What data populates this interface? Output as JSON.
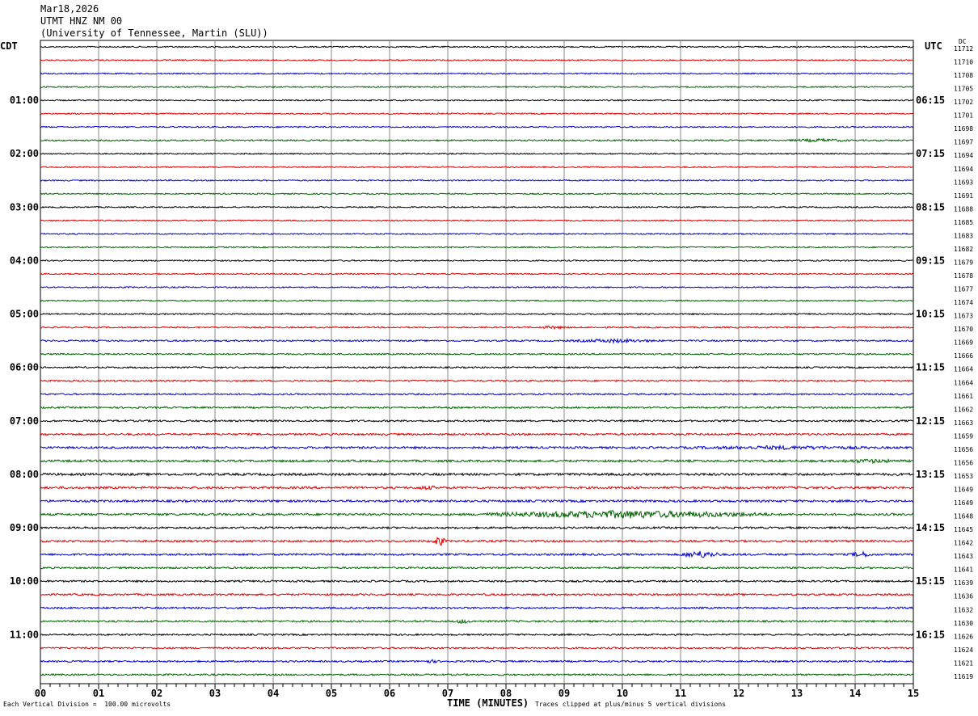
{
  "header": {
    "date": "Mar18,2026",
    "station": "UTMT HNZ NM 00",
    "network": "(University of Tennessee, Martin (SLU))"
  },
  "left_zone": "CDT",
  "right_zone": "UTC",
  "dc_label": "DC",
  "footer": {
    "scale": "Each Vertical Division =  100.00 microvolts",
    "xlabel": "TIME (MINUTES)",
    "clip_note": "Traces clipped at plus/minus 5 vertical divisions"
  },
  "colors": {
    "trace_cycle": [
      "#000000",
      "#dd0000",
      "#0000cc",
      "#006400"
    ],
    "grid": "#888888"
  },
  "chart_data": {
    "type": "line",
    "title": "UTMT HNZ NM 00",
    "xlabel": "TIME (MINUTES)",
    "xlim": [
      0,
      15
    ],
    "x_ticks": [
      "00",
      "01",
      "02",
      "03",
      "04",
      "05",
      "06",
      "07",
      "08",
      "09",
      "10",
      "11",
      "12",
      "13",
      "14",
      "15"
    ],
    "left_time_labels": [
      "01:00",
      "02:00",
      "03:00",
      "04:00",
      "05:00",
      "06:00",
      "07:00",
      "08:00",
      "09:00",
      "10:00",
      "11:00"
    ],
    "right_time_labels": [
      "06:15",
      "07:15",
      "08:15",
      "09:15",
      "10:15",
      "11:15",
      "12:15",
      "13:15",
      "14:15",
      "15:15",
      "16:15"
    ],
    "hour_label_rows": [
      4,
      8,
      12,
      16,
      20,
      24,
      28,
      32,
      36,
      40,
      44
    ],
    "trace_count": 48,
    "dc_offsets": [
      "11712",
      "11710",
      "11708",
      "11705",
      "11702",
      "11701",
      "11698",
      "11697",
      "11694",
      "11694",
      "11693",
      "11691",
      "11688",
      "11685",
      "11683",
      "11682",
      "11679",
      "11678",
      "11677",
      "11674",
      "11673",
      "11670",
      "11669",
      "11666",
      "11664",
      "11664",
      "11661",
      "11662",
      "11663",
      "11659",
      "11656",
      "11656",
      "11653",
      "11649",
      "11649",
      "11648",
      "11645",
      "11642",
      "11643",
      "11641",
      "11639",
      "11636",
      "11632",
      "11630",
      "11626",
      "11624",
      "11621",
      "11619"
    ],
    "noise_level": [
      0.5,
      0.5,
      0.5,
      0.5,
      0.5,
      0.5,
      0.5,
      0.55,
      0.5,
      0.5,
      0.5,
      0.5,
      0.5,
      0.5,
      0.5,
      0.5,
      0.5,
      0.5,
      0.5,
      0.5,
      0.55,
      0.55,
      0.6,
      0.6,
      0.6,
      0.6,
      0.6,
      0.65,
      0.7,
      0.75,
      0.8,
      0.85,
      0.9,
      0.85,
      0.85,
      0.85,
      0.75,
      0.75,
      0.75,
      0.7,
      0.7,
      0.7,
      0.7,
      0.7,
      0.65,
      0.65,
      0.65,
      0.65
    ],
    "events": [
      {
        "trace": 7,
        "minute_start": 12.8,
        "minute_end": 14.0,
        "amp": 1.4
      },
      {
        "trace": 21,
        "minute_start": 8.5,
        "minute_end": 9.1,
        "amp": 1.4
      },
      {
        "trace": 22,
        "minute_start": 9.0,
        "minute_end": 10.7,
        "amp": 1.6
      },
      {
        "trace": 30,
        "minute_start": 10.5,
        "minute_end": 15.0,
        "amp": 1.6
      },
      {
        "trace": 31,
        "minute_start": 13.5,
        "minute_end": 15.0,
        "amp": 1.7
      },
      {
        "trace": 33,
        "minute_start": 6.4,
        "minute_end": 6.9,
        "amp": 1.8
      },
      {
        "trace": 35,
        "minute_start": 7.6,
        "minute_end": 12.5,
        "amp": 3.2
      },
      {
        "trace": 37,
        "minute_start": 6.75,
        "minute_end": 6.95,
        "amp": 4.5
      },
      {
        "trace": 38,
        "minute_start": 11.0,
        "minute_end": 11.7,
        "amp": 3.0
      },
      {
        "trace": 38,
        "minute_start": 13.9,
        "minute_end": 14.3,
        "amp": 2.5
      },
      {
        "trace": 43,
        "minute_start": 7.1,
        "minute_end": 7.4,
        "amp": 2.0
      },
      {
        "trace": 46,
        "minute_start": 6.5,
        "minute_end": 6.9,
        "amp": 1.5
      }
    ]
  }
}
